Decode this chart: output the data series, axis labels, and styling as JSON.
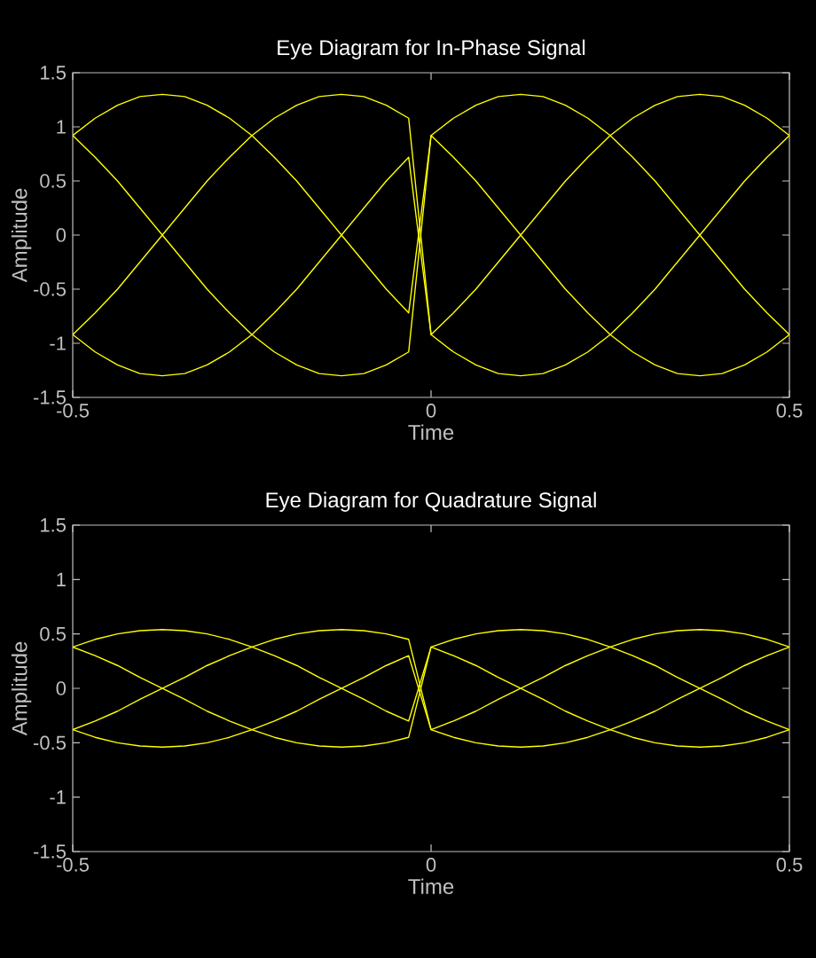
{
  "chart_data": [
    {
      "type": "line",
      "title": "Eye Diagram for In-Phase Signal",
      "xlabel": "Time",
      "ylabel": "Amplitude",
      "x": [
        -0.5,
        -0.46875,
        -0.4375,
        -0.40625,
        -0.375,
        -0.34375,
        -0.3125,
        -0.28125,
        -0.25,
        -0.21875,
        -0.1875,
        -0.15625,
        -0.125,
        -0.09375,
        -0.0625,
        -0.03125,
        0,
        0.03125,
        0.0625,
        0.09375,
        0.125,
        0.15625,
        0.1875,
        0.21875,
        0.25,
        0.28125,
        0.3125,
        0.34375,
        0.375,
        0.40625,
        0.4375,
        0.46875,
        0.5
      ],
      "series": [
        {
          "color": "#ffff00",
          "values": [
            0.92,
            1.08,
            1.2,
            1.28,
            1.3,
            1.28,
            1.2,
            1.08,
            0.92,
            1.08,
            1.2,
            1.28,
            1.3,
            1.28,
            1.2,
            1.08,
            -0.92,
            -1.08,
            -1.2,
            -1.28,
            -1.3,
            -1.28,
            -1.2,
            -1.08,
            -0.92,
            -1.08,
            -1.2,
            -1.28,
            -1.3,
            -1.28,
            -1.2,
            -1.08,
            -0.92
          ]
        },
        {
          "color": "#ffff00",
          "values": [
            -0.92,
            -1.08,
            -1.2,
            -1.28,
            -1.3,
            -1.28,
            -1.2,
            -1.08,
            -0.92,
            -1.08,
            -1.2,
            -1.28,
            -1.3,
            -1.28,
            -1.2,
            -1.08,
            0.92,
            1.08,
            1.2,
            1.28,
            1.3,
            1.28,
            1.2,
            1.08,
            0.92,
            1.08,
            1.2,
            1.28,
            1.3,
            1.28,
            1.2,
            1.08,
            0.92
          ]
        },
        {
          "color": "#ffff00",
          "values": [
            0.92,
            0.72,
            0.5,
            0.25,
            0,
            -0.25,
            -0.5,
            -0.72,
            -0.92,
            -0.72,
            -0.5,
            -0.25,
            0,
            0.25,
            0.5,
            0.72,
            -0.92,
            -0.72,
            -0.5,
            -0.25,
            0,
            0.25,
            0.5,
            0.72,
            0.92,
            0.72,
            0.5,
            0.25,
            0,
            -0.25,
            -0.5,
            -0.72,
            -0.92
          ]
        },
        {
          "color": "#ffff00",
          "values": [
            -0.92,
            -0.72,
            -0.5,
            -0.25,
            0,
            0.25,
            0.5,
            0.72,
            0.92,
            0.72,
            0.5,
            0.25,
            0,
            -0.25,
            -0.5,
            -0.72,
            0.92,
            0.72,
            0.5,
            0.25,
            0,
            -0.25,
            -0.5,
            -0.72,
            -0.92,
            -0.72,
            -0.5,
            -0.25,
            0,
            0.25,
            0.5,
            0.72,
            0.92
          ]
        }
      ],
      "xlim": [
        -0.5,
        0.5
      ],
      "ylim": [
        -1.5,
        1.5
      ],
      "xticks": [
        -0.5,
        0,
        0.5
      ],
      "yticks": [
        -1.5,
        -1,
        -0.5,
        0,
        0.5,
        1,
        1.5
      ]
    },
    {
      "type": "line",
      "title": "Eye Diagram for Quadrature Signal",
      "xlabel": "Time",
      "ylabel": "Amplitude",
      "x": [
        -0.5,
        -0.46875,
        -0.4375,
        -0.40625,
        -0.375,
        -0.34375,
        -0.3125,
        -0.28125,
        -0.25,
        -0.21875,
        -0.1875,
        -0.15625,
        -0.125,
        -0.09375,
        -0.0625,
        -0.03125,
        0,
        0.03125,
        0.0625,
        0.09375,
        0.125,
        0.15625,
        0.1875,
        0.21875,
        0.25,
        0.28125,
        0.3125,
        0.34375,
        0.375,
        0.40625,
        0.4375,
        0.46875,
        0.5
      ],
      "series": [
        {
          "color": "#ffff00",
          "values": [
            0.38,
            0.45,
            0.5,
            0.53,
            0.54,
            0.53,
            0.5,
            0.45,
            0.38,
            0.45,
            0.5,
            0.53,
            0.54,
            0.53,
            0.5,
            0.45,
            -0.38,
            -0.45,
            -0.5,
            -0.53,
            -0.54,
            -0.53,
            -0.5,
            -0.45,
            -0.38,
            -0.45,
            -0.5,
            -0.53,
            -0.54,
            -0.53,
            -0.5,
            -0.45,
            -0.38
          ]
        },
        {
          "color": "#ffff00",
          "values": [
            -0.38,
            -0.45,
            -0.5,
            -0.53,
            -0.54,
            -0.53,
            -0.5,
            -0.45,
            -0.38,
            -0.45,
            -0.5,
            -0.53,
            -0.54,
            -0.53,
            -0.5,
            -0.45,
            0.38,
            0.45,
            0.5,
            0.53,
            0.54,
            0.53,
            0.5,
            0.45,
            0.38,
            0.45,
            0.5,
            0.53,
            0.54,
            0.53,
            0.5,
            0.45,
            0.38
          ]
        },
        {
          "color": "#ffff00",
          "values": [
            0.38,
            0.3,
            0.21,
            0.1,
            0,
            -0.1,
            -0.21,
            -0.3,
            -0.38,
            -0.3,
            -0.21,
            -0.1,
            0,
            0.1,
            0.21,
            0.3,
            -0.38,
            -0.3,
            -0.21,
            -0.1,
            0,
            0.1,
            0.21,
            0.3,
            0.38,
            0.3,
            0.21,
            0.1,
            0,
            -0.1,
            -0.21,
            -0.3,
            -0.38
          ]
        },
        {
          "color": "#ffff00",
          "values": [
            -0.38,
            -0.3,
            -0.21,
            -0.1,
            0,
            0.1,
            0.21,
            0.3,
            0.38,
            0.3,
            0.21,
            0.1,
            0,
            -0.1,
            -0.21,
            -0.3,
            0.38,
            0.3,
            0.21,
            0.1,
            0,
            -0.1,
            -0.21,
            -0.3,
            -0.38,
            -0.3,
            -0.21,
            -0.1,
            0,
            0.1,
            0.21,
            0.3,
            0.38
          ]
        }
      ],
      "xlim": [
        -0.5,
        0.5
      ],
      "ylim": [
        -1.5,
        1.5
      ],
      "xticks": [
        -0.5,
        0,
        0.5
      ],
      "yticks": [
        -1.5,
        -1,
        -0.5,
        0,
        0.5,
        1,
        1.5
      ]
    }
  ]
}
